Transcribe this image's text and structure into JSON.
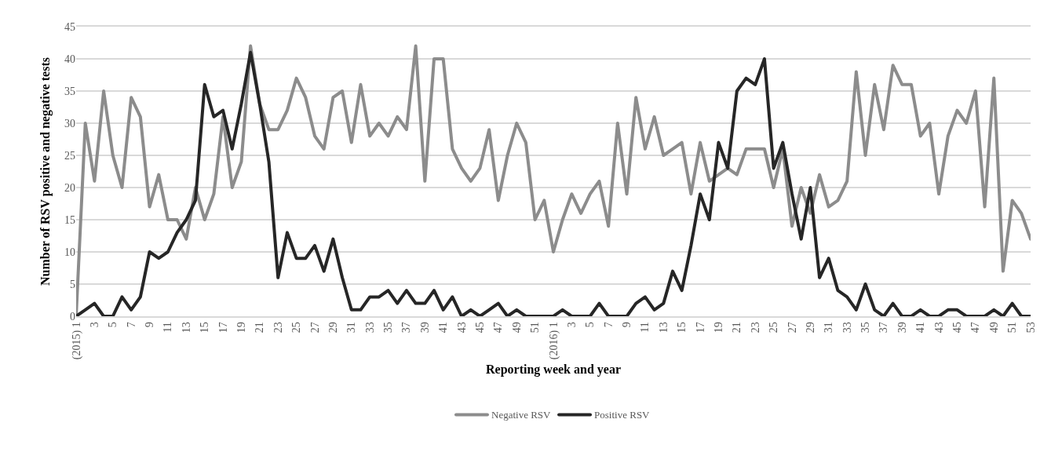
{
  "chart_data": {
    "type": "line",
    "xlabel": "Reporting week and year",
    "ylabel": "Number of RSV positive and negative tests",
    "categories": [
      "(2015) 1",
      null,
      "3",
      null,
      "5",
      null,
      "7",
      null,
      "9",
      null,
      "11",
      null,
      "13",
      null,
      "15",
      null,
      "17",
      null,
      "19",
      null,
      "21",
      null,
      "23",
      null,
      "25",
      null,
      "27",
      null,
      "29",
      null,
      "31",
      null,
      "33",
      null,
      "35",
      null,
      "37",
      null,
      "39",
      null,
      "41",
      null,
      "43",
      null,
      "45",
      null,
      "47",
      null,
      "49",
      null,
      "51",
      null,
      "(2016) 1",
      null,
      "3",
      null,
      "5",
      null,
      "7",
      null,
      "9",
      null,
      "11",
      null,
      "13",
      null,
      "15",
      null,
      "17",
      null,
      "19",
      null,
      "21",
      null,
      "23",
      null,
      "25",
      null,
      "27",
      null,
      "29",
      null,
      "31",
      null,
      "33",
      null,
      "35",
      null,
      "37",
      null,
      "39",
      null,
      "41",
      null,
      "43",
      null,
      "45",
      null,
      "47",
      null,
      "49",
      null,
      "51",
      null,
      "53"
    ],
    "series": [
      {
        "name": "Negative RSV",
        "color": "#8c8c8c",
        "values": [
          0,
          30,
          21,
          35,
          25,
          20,
          34,
          31,
          17,
          22,
          15,
          15,
          12,
          20,
          15,
          19,
          31,
          20,
          24,
          42,
          33,
          29,
          29,
          32,
          37,
          34,
          28,
          26,
          34,
          35,
          27,
          36,
          28,
          30,
          28,
          31,
          29,
          42,
          21,
          40,
          40,
          26,
          23,
          21,
          23,
          29,
          18,
          25,
          30,
          27,
          15,
          18,
          10,
          15,
          19,
          16,
          19,
          21,
          14,
          30,
          19,
          34,
          26,
          31,
          25,
          26,
          27,
          19,
          27,
          21,
          22,
          23,
          22,
          26,
          26,
          26,
          20,
          26,
          14,
          20,
          16,
          22,
          17,
          18,
          21,
          38,
          25,
          36,
          29,
          39,
          36,
          36,
          28,
          30,
          19,
          28,
          32,
          30,
          35,
          17,
          37,
          7,
          18,
          16,
          12
        ]
      },
      {
        "name": "Positive RSV",
        "color": "#262626",
        "values": [
          0,
          1,
          2,
          0,
          0,
          3,
          1,
          3,
          10,
          9,
          10,
          13,
          15,
          18,
          36,
          31,
          32,
          26,
          33,
          41,
          33,
          24,
          6,
          13,
          9,
          9,
          11,
          7,
          12,
          6,
          1,
          1,
          3,
          3,
          4,
          2,
          4,
          2,
          2,
          4,
          1,
          3,
          0,
          1,
          0,
          1,
          2,
          0,
          1,
          0,
          0,
          0,
          0,
          1,
          0,
          0,
          0,
          2,
          0,
          0,
          0,
          2,
          3,
          1,
          2,
          7,
          4,
          11,
          19,
          15,
          27,
          23,
          35,
          37,
          36,
          40,
          23,
          27,
          19,
          12,
          20,
          6,
          9,
          4,
          3,
          1,
          5,
          1,
          0,
          2,
          0,
          0,
          1,
          0,
          0,
          1,
          1,
          0,
          0,
          0,
          1,
          0,
          2,
          0,
          0
        ]
      }
    ],
    "ylim": [
      0,
      45
    ],
    "yticks": [
      0,
      5,
      10,
      15,
      20,
      25,
      30,
      35,
      40,
      45
    ],
    "grid": "y",
    "legend": "bottom",
    "marker": "none",
    "line_style": "solid"
  }
}
